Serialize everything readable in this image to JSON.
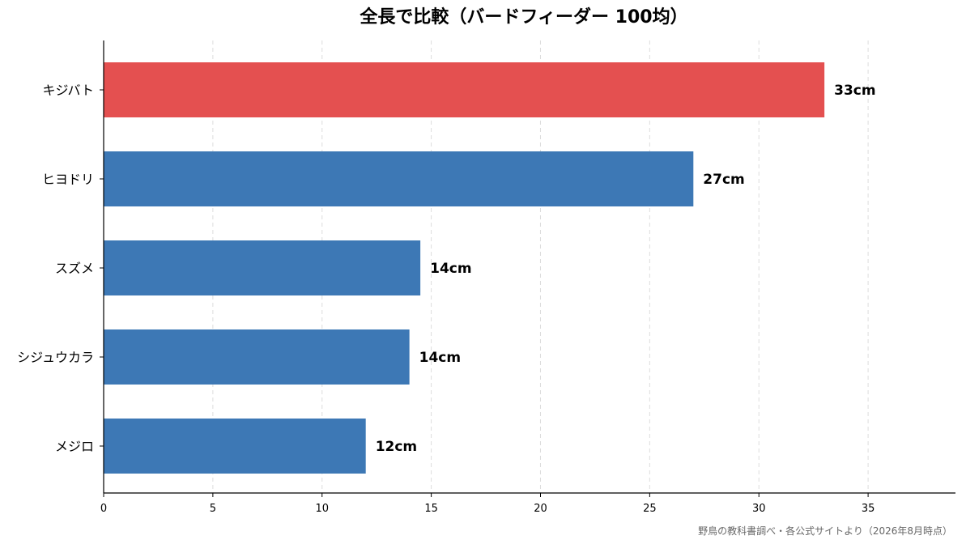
{
  "chart_data": {
    "type": "bar",
    "orientation": "horizontal",
    "title": "全長で比較（バードフィーダー 100均）",
    "categories": [
      "キジバト",
      "ヒヨドリ",
      "スズメ",
      "シジュウカラ",
      "メジロ"
    ],
    "values": [
      33,
      27,
      14.5,
      14,
      12
    ],
    "value_labels": [
      "33cm",
      "27cm",
      "14cm",
      "14cm",
      "12cm"
    ],
    "highlight_index": 0,
    "xlim": [
      0,
      39
    ],
    "xticks": [
      0,
      5,
      10,
      15,
      20,
      25,
      30,
      35
    ],
    "grid": "vertical dashed",
    "colors": {
      "highlight": "#e45050",
      "default": "#3d78b5",
      "grid": "#dddddd",
      "axis": "#000000"
    },
    "source": "野鳥の教科書調べ・各公式サイトより（2026年8月時点）"
  }
}
